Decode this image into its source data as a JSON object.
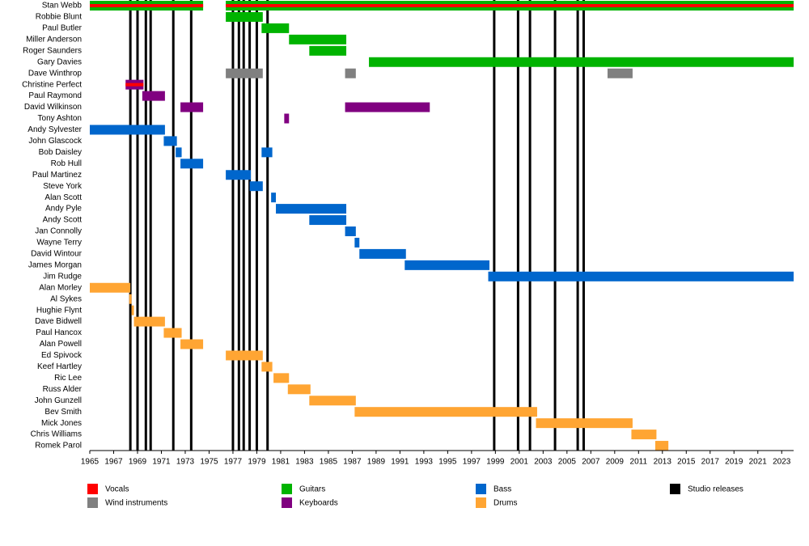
{
  "chart_data": {
    "type": "timeline",
    "categories": [
      "Stan Webb",
      "Robbie Blunt",
      "Paul Butler",
      "Miller Anderson",
      "Roger Saunders",
      "Gary Davies",
      "Dave Winthrop",
      "Christine Perfect",
      "Paul Raymond",
      "David Wilkinson",
      "Tony Ashton",
      "Andy Sylvester",
      "John Glascock",
      "Bob Daisley",
      "Rob Hull",
      "Paul Martinez",
      "Steve York",
      "Alan Scott",
      "Andy Pyle",
      "Andy Scott",
      "Jan Connolly",
      "Wayne Terry",
      "David Wintour",
      "James Morgan",
      "Jim Rudge",
      "Alan Morley",
      "Al Sykes",
      "Hughie Flynt",
      "Dave Bidwell",
      "Paul Hancox",
      "Alan Powell",
      "Ed Spivock",
      "Keef Hartley",
      "Ric Lee",
      "Russ Alder",
      "John Gunzell",
      "Bev Smith",
      "Mick Jones",
      "Chris Williams",
      "Romek Parol"
    ],
    "xlim": [
      1965,
      2024
    ],
    "xticks": [
      1965,
      1967,
      1969,
      1971,
      1973,
      1975,
      1977,
      1979,
      1981,
      1983,
      1985,
      1987,
      1989,
      1991,
      1993,
      1995,
      1997,
      1999,
      2001,
      2003,
      2005,
      2007,
      2009,
      2011,
      2013,
      2015,
      2017,
      2019,
      2021,
      2023
    ],
    "series": [
      {
        "name": "Vocals",
        "color": "#ff0000",
        "values": [
          [
            [
              1965,
              1974.5
            ],
            [
              1976.4,
              2024
            ]
          ],
          null,
          null,
          null,
          null,
          null,
          null,
          [
            [
              1968,
              1969.5
            ]
          ],
          null,
          null,
          null,
          null,
          null,
          null,
          null,
          null,
          null,
          null,
          null,
          null,
          null,
          null,
          null,
          null,
          null,
          null,
          null,
          null,
          null,
          null,
          null,
          null,
          null,
          null,
          null,
          null,
          null,
          null,
          null,
          null
        ]
      },
      {
        "name": "Wind instruments",
        "color": "#808080",
        "values": [
          null,
          null,
          null,
          null,
          null,
          null,
          [
            [
              1976.4,
              1979.5
            ],
            [
              1986.4,
              1987.3
            ],
            [
              2008.4,
              2010.5
            ]
          ],
          null,
          null,
          null,
          null,
          null,
          null,
          null,
          null,
          null,
          null,
          null,
          null,
          null,
          null,
          null,
          null,
          null,
          null,
          null,
          null,
          null,
          null,
          null,
          null,
          null,
          null,
          null,
          null,
          null,
          null,
          null,
          null,
          null
        ]
      },
      {
        "name": "Guitars",
        "color": "#00b300",
        "values": [
          [
            [
              1965,
              1974.5
            ],
            [
              1976.4,
              2024
            ]
          ],
          [
            [
              1976.4,
              1979.5
            ]
          ],
          [
            [
              1979.4,
              1981.7
            ]
          ],
          [
            [
              1981.7,
              1986.5
            ]
          ],
          [
            [
              1983.4,
              1986.5
            ]
          ],
          [
            [
              1988.4,
              2024
            ]
          ],
          null,
          null,
          null,
          null,
          null,
          null,
          null,
          null,
          null,
          null,
          null,
          null,
          null,
          null,
          null,
          null,
          null,
          null,
          null,
          null,
          null,
          null,
          null,
          null,
          null,
          null,
          null,
          null,
          null,
          null,
          null,
          null,
          null,
          null
        ]
      },
      {
        "name": "Keyboards",
        "color": "#800080",
        "values": [
          null,
          null,
          null,
          null,
          null,
          null,
          null,
          [
            [
              1968,
              1969.5
            ]
          ],
          [
            [
              1969.4,
              1971.3
            ]
          ],
          [
            [
              1972.6,
              1974.5
            ],
            [
              1986.4,
              1993.5
            ]
          ],
          [
            [
              1981.3,
              1981.7
            ]
          ],
          null,
          null,
          null,
          null,
          null,
          null,
          null,
          null,
          null,
          null,
          null,
          null,
          null,
          null,
          null,
          null,
          null,
          null,
          null,
          null,
          null,
          null,
          null,
          null,
          null,
          null,
          null,
          null,
          null
        ]
      },
      {
        "name": "Bass",
        "color": "#0066cc",
        "values": [
          null,
          null,
          null,
          null,
          null,
          null,
          null,
          null,
          null,
          null,
          null,
          [
            [
              1965,
              1971.3
            ]
          ],
          [
            [
              1971.2,
              1972.3
            ]
          ],
          [
            [
              1972.2,
              1972.7
            ],
            [
              1979.4,
              1980.3
            ]
          ],
          [
            [
              1972.6,
              1974.5
            ]
          ],
          [
            [
              1976.4,
              1978.5
            ]
          ],
          [
            [
              1978.4,
              1979.5
            ]
          ],
          [
            [
              1980.2,
              1980.6
            ]
          ],
          [
            [
              1980.6,
              1986.5
            ]
          ],
          [
            [
              1983.4,
              1986.5
            ]
          ],
          [
            [
              1986.4,
              1987.3
            ]
          ],
          [
            [
              1987.2,
              1987.6
            ]
          ],
          [
            [
              1987.6,
              1991.5
            ]
          ],
          [
            [
              1991.4,
              1998.5
            ]
          ],
          [
            [
              1998.4,
              2024
            ]
          ],
          null,
          null,
          null,
          null,
          null,
          null,
          null,
          null,
          null,
          null,
          null,
          null,
          null,
          null,
          null
        ]
      },
      {
        "name": "Drums",
        "color": "#ffa533",
        "values": [
          null,
          null,
          null,
          null,
          null,
          null,
          null,
          null,
          null,
          null,
          null,
          null,
          null,
          null,
          null,
          null,
          null,
          null,
          null,
          null,
          null,
          null,
          null,
          null,
          null,
          [
            [
              1965,
              1968.4
            ]
          ],
          [
            [
              1968.3,
              1968.5
            ]
          ],
          [
            [
              1968.5,
              1968.7
            ]
          ],
          [
            [
              1968.7,
              1971.3
            ]
          ],
          [
            [
              1971.2,
              1972.7
            ]
          ],
          [
            [
              1972.6,
              1974.5
            ]
          ],
          [
            [
              1976.4,
              1979.5
            ]
          ],
          [
            [
              1979.4,
              1980.3
            ]
          ],
          [
            [
              1980.4,
              1981.7
            ]
          ],
          [
            [
              1981.6,
              1983.5
            ]
          ],
          [
            [
              1983.4,
              1987.3
            ]
          ],
          [
            [
              1987.2,
              2002.5
            ]
          ],
          [
            [
              2002.4,
              2010.5
            ]
          ],
          [
            [
              2010.4,
              2012.5
            ]
          ],
          [
            [
              2012.4,
              2013.5
            ]
          ]
        ]
      }
    ],
    "events": {
      "name": "Studio releases",
      "color": "#000000",
      "values": [
        1968.4,
        1969.0,
        1969.7,
        1970.1,
        1972.0,
        1973.5,
        1977.0,
        1977.5,
        1977.9,
        1978.4,
        1979.0,
        1979.9,
        1998.9,
        2000.9,
        2001.9,
        2004.0,
        2005.9,
        2006.4
      ]
    }
  }
}
